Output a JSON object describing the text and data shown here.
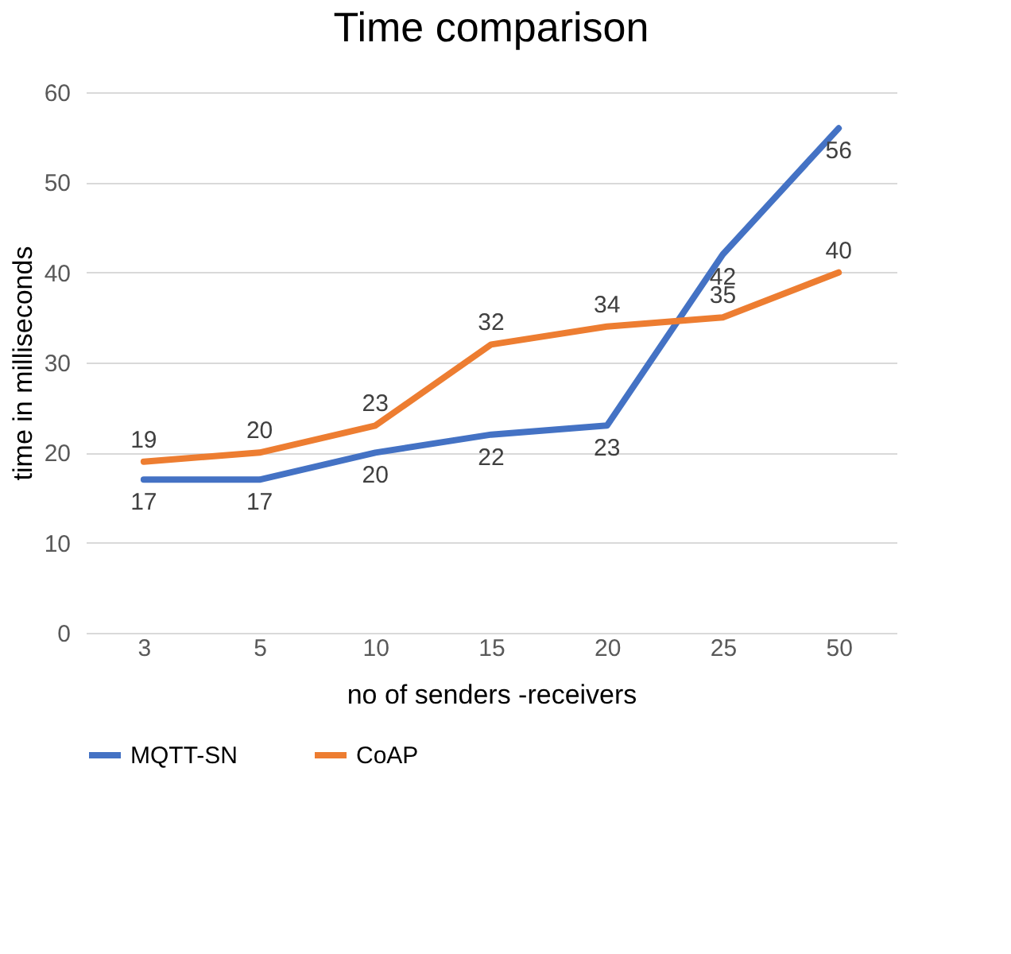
{
  "chart_data": {
    "type": "line",
    "title": "Time comparison",
    "xlabel": "no of senders -receivers",
    "ylabel": "time  in milliseconds",
    "categories": [
      "3",
      "5",
      "10",
      "15",
      "20",
      "25",
      "50"
    ],
    "series": [
      {
        "name": "MQTT-SN",
        "color": "#4472c4",
        "values": [
          17,
          17,
          20,
          22,
          23,
          42,
          56
        ]
      },
      {
        "name": "CoAP",
        "color": "#ed7d31",
        "values": [
          19,
          20,
          23,
          32,
          34,
          35,
          40
        ]
      }
    ],
    "ylim": [
      0,
      60
    ],
    "yticks": [
      0,
      10,
      20,
      30,
      40,
      50,
      60
    ],
    "grid": "y",
    "legend": "bottom",
    "data_labels": true,
    "marker": "none",
    "line_style": "solid"
  }
}
